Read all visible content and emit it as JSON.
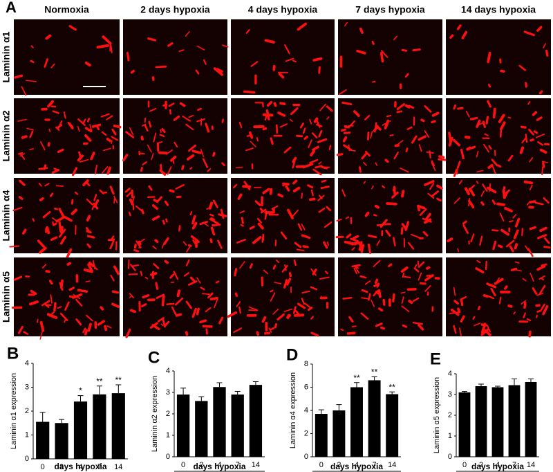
{
  "panel_a": {
    "label": "A",
    "columns": [
      "Normoxia",
      "2 days hypoxia",
      "4 days hypoxia",
      "7 days hypoxia",
      "14 days hypoxia"
    ],
    "rows": [
      "Laminin α1",
      "Laminin α2",
      "Laminin α4",
      "Laminin α5"
    ]
  },
  "chart_data": [
    {
      "type": "bar",
      "panel": "B",
      "y_label": "Laminin α1 expression",
      "x_label": "days hypoxia",
      "categories": [
        "0",
        "2",
        "4",
        "7",
        "14"
      ],
      "values": [
        1.55,
        1.5,
        2.4,
        2.7,
        2.75
      ],
      "errors": [
        0.4,
        0.15,
        0.25,
        0.35,
        0.35
      ],
      "significance": [
        null,
        null,
        "*",
        "**",
        "**"
      ],
      "color": "#000000",
      "ylim": [
        0,
        4
      ],
      "yticks": [
        0,
        1,
        2,
        3,
        4
      ]
    },
    {
      "type": "bar",
      "panel": "C",
      "y_label": "Laminin α2 expression",
      "x_label": "days hypoxia",
      "categories": [
        "0",
        "2",
        "4",
        "7",
        "14"
      ],
      "values": [
        2.9,
        2.6,
        3.25,
        2.9,
        3.35
      ],
      "errors": [
        0.3,
        0.2,
        0.2,
        0.15,
        0.15
      ],
      "color": "#000000",
      "ylim": [
        0,
        4
      ],
      "yticks": [
        0,
        1,
        2,
        3,
        4
      ]
    },
    {
      "type": "bar",
      "panel": "D",
      "y_label": "Laminin α4 expression",
      "x_label": "days hypoxia",
      "categories": [
        "0",
        "2",
        "4",
        "7",
        "14"
      ],
      "values": [
        3.7,
        4.0,
        6.0,
        6.6,
        5.4
      ],
      "errors": [
        0.35,
        0.5,
        0.4,
        0.3,
        0.2
      ],
      "significance": [
        null,
        null,
        "**",
        "**",
        "**"
      ],
      "color": "#000000",
      "ylim": [
        0,
        8
      ],
      "yticks": [
        0,
        2,
        4,
        6,
        8
      ]
    },
    {
      "type": "bar",
      "panel": "E",
      "y_label": "Laminin α5 expression",
      "x_label": "days hypoxia",
      "categories": [
        "0",
        "2",
        "4",
        "7",
        "14"
      ],
      "values": [
        3.1,
        3.4,
        3.35,
        3.45,
        3.6
      ],
      "errors": [
        0.05,
        0.1,
        0.05,
        0.3,
        0.15
      ],
      "color": "#000000",
      "ylim": [
        0,
        4
      ],
      "yticks": [
        0,
        1,
        2,
        3,
        4
      ]
    }
  ]
}
